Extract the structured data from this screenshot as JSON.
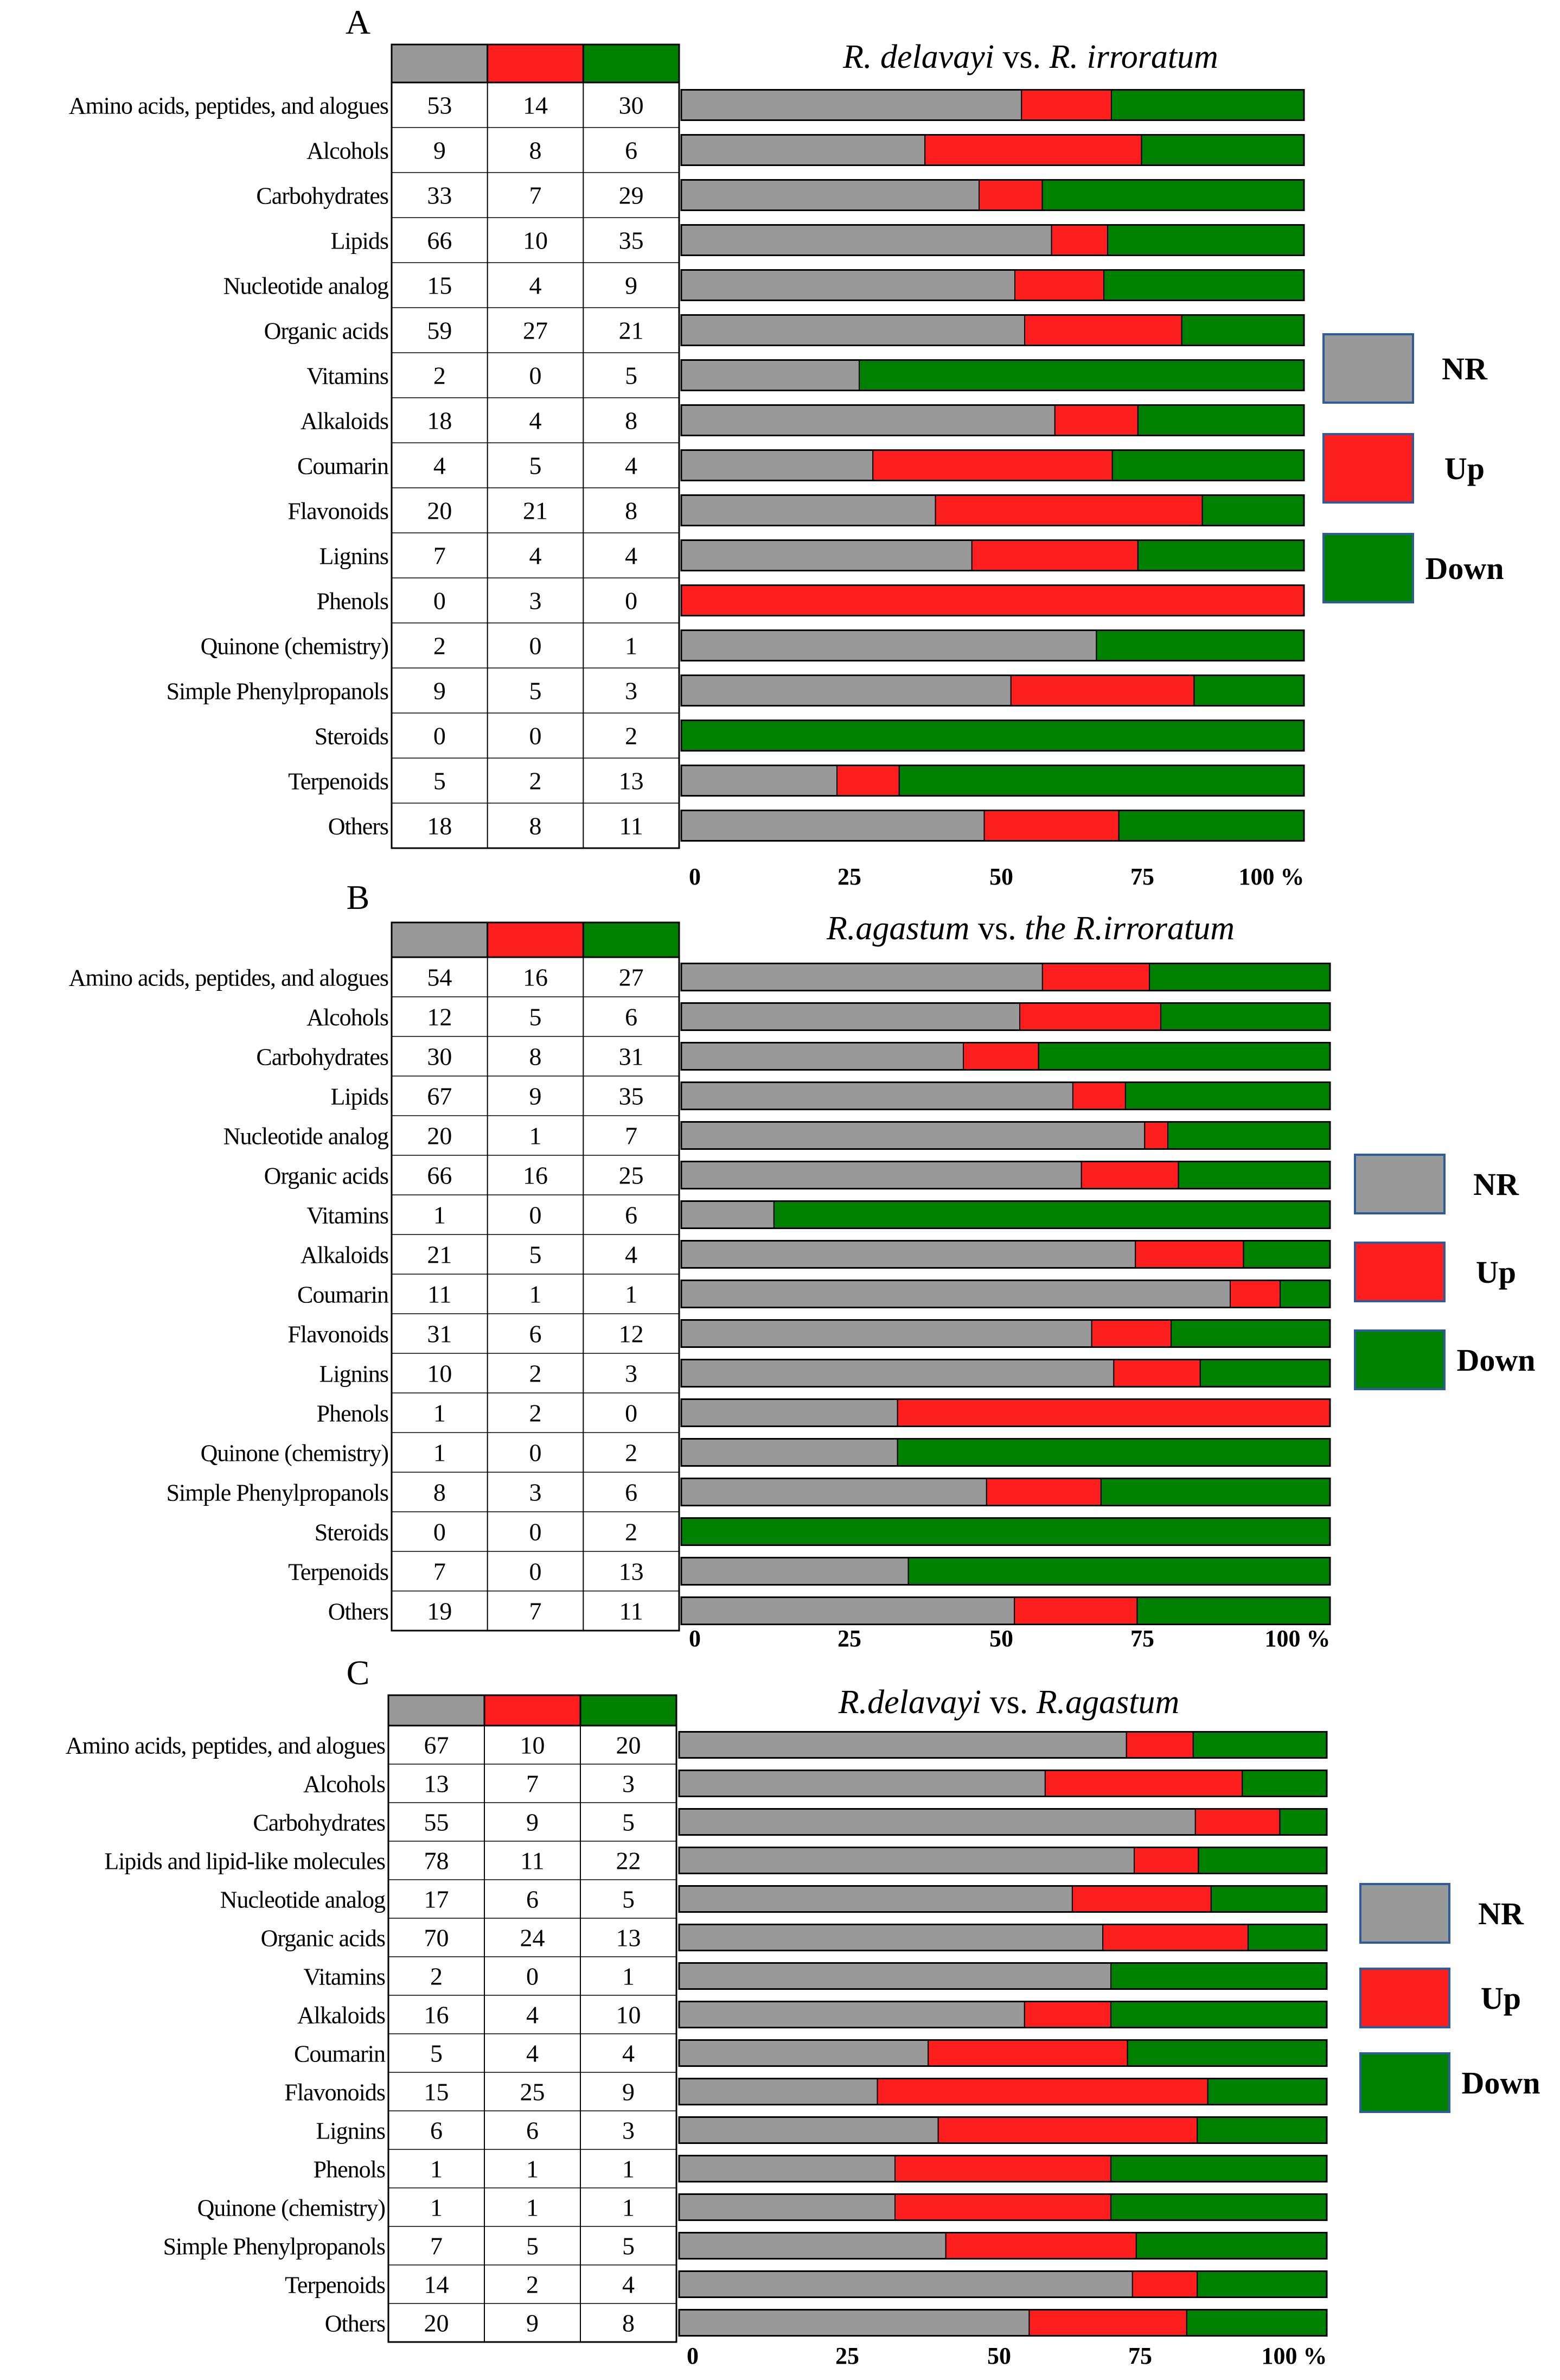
{
  "colors": {
    "NR": "#999999",
    "Up": "#FF1E1E",
    "Down": "#008000",
    "legend_border": "#2E5C9A",
    "grid": "#000000"
  },
  "legend": [
    "NR",
    "Up",
    "Down"
  ],
  "axis_ticks": [
    "0",
    "25",
    "50",
    "75",
    "100 %"
  ],
  "chart_data": [
    {
      "type": "bar",
      "stacked": "percent",
      "orientation": "horizontal",
      "panel_label": "A",
      "title": {
        "sp1": "R. delavayi",
        "vs": " vs. ",
        "sp2": "R. irroratum"
      },
      "xlim": [
        0,
        100
      ],
      "categories": [
        "Amino acids, peptides, and alogues",
        "Alcohols",
        "Carbohydrates",
        "Lipids",
        "Nucleotide analog",
        "Organic acids",
        "Vitamins",
        "Alkaloids",
        "Coumarin",
        "Flavonoids",
        "Lignins",
        "Phenols",
        "Quinone (chemistry)",
        "Simple Phenylpropanols",
        "Steroids",
        "Terpenoids",
        "Others"
      ],
      "series": [
        {
          "name": "NR",
          "values": [
            53,
            9,
            33,
            66,
            15,
            59,
            2,
            18,
            4,
            20,
            7,
            0,
            2,
            9,
            0,
            5,
            18
          ]
        },
        {
          "name": "Up",
          "values": [
            14,
            8,
            7,
            10,
            4,
            27,
            0,
            4,
            5,
            21,
            4,
            3,
            0,
            5,
            0,
            2,
            8
          ]
        },
        {
          "name": "Down",
          "values": [
            30,
            6,
            29,
            35,
            9,
            21,
            5,
            8,
            4,
            8,
            4,
            0,
            1,
            3,
            2,
            13,
            11
          ]
        }
      ]
    },
    {
      "type": "bar",
      "stacked": "percent",
      "orientation": "horizontal",
      "panel_label": "B",
      "title": {
        "sp1": "R.agastum",
        "vs": " vs. ",
        "sp2": "the R.irroratum"
      },
      "xlim": [
        0,
        100
      ],
      "categories": [
        "Amino acids, peptides, and alogues",
        "Alcohols",
        "Carbohydrates",
        "Lipids",
        "Nucleotide analog",
        "Organic acids",
        "Vitamins",
        "Alkaloids",
        "Coumarin",
        "Flavonoids",
        "Lignins",
        "Phenols",
        "Quinone (chemistry)",
        "Simple Phenylpropanols",
        "Steroids",
        "Terpenoids",
        "Others"
      ],
      "series": [
        {
          "name": "NR",
          "values": [
            54,
            12,
            30,
            67,
            20,
            66,
            1,
            21,
            11,
            31,
            10,
            1,
            1,
            8,
            0,
            7,
            19
          ]
        },
        {
          "name": "Up",
          "values": [
            16,
            5,
            8,
            9,
            1,
            16,
            0,
            5,
            1,
            6,
            2,
            2,
            0,
            3,
            0,
            0,
            7
          ]
        },
        {
          "name": "Down",
          "values": [
            27,
            6,
            31,
            35,
            7,
            25,
            6,
            4,
            1,
            12,
            3,
            0,
            2,
            6,
            2,
            13,
            11
          ]
        }
      ]
    },
    {
      "type": "bar",
      "stacked": "percent",
      "orientation": "horizontal",
      "panel_label": "C",
      "title": {
        "sp1": "R.delavayi",
        "vs": " vs. ",
        "sp2": "R.agastum"
      },
      "xlim": [
        0,
        100
      ],
      "categories": [
        "Amino acids, peptides, and alogues",
        "Alcohols",
        "Carbohydrates",
        "Lipids and lipid-like molecules",
        "Nucleotide analog",
        "Organic acids",
        "Vitamins",
        "Alkaloids",
        "Coumarin",
        "Flavonoids",
        "Lignins",
        "Phenols",
        "Quinone (chemistry)",
        "Simple Phenylpropanols",
        "Terpenoids",
        "Others"
      ],
      "series": [
        {
          "name": "NR",
          "values": [
            67,
            13,
            55,
            78,
            17,
            70,
            2,
            16,
            5,
            15,
            6,
            1,
            1,
            7,
            14,
            20
          ]
        },
        {
          "name": "Up",
          "values": [
            10,
            7,
            9,
            11,
            6,
            24,
            0,
            4,
            4,
            25,
            6,
            1,
            1,
            5,
            2,
            9
          ]
        },
        {
          "name": "Down",
          "values": [
            20,
            3,
            5,
            22,
            5,
            13,
            1,
            10,
            4,
            9,
            3,
            1,
            1,
            5,
            4,
            8
          ]
        }
      ]
    }
  ]
}
